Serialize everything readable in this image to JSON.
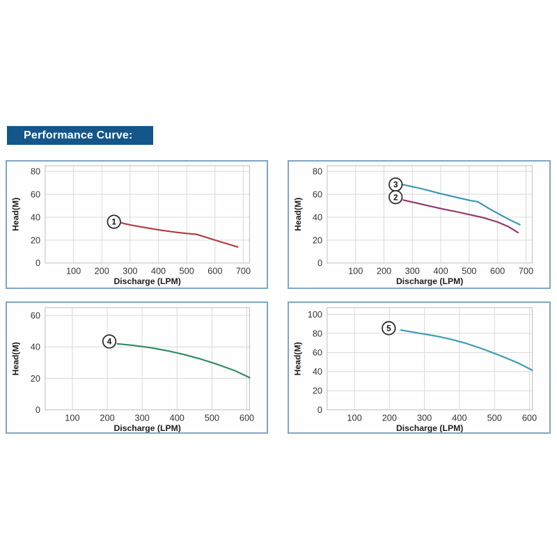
{
  "header": {
    "title": "Performance Curve:"
  },
  "colors": {
    "banner_bg": "#14568a",
    "banner_text": "#ffffff",
    "panel_border": "#7fa5c4",
    "grid": "#d8d8d8",
    "plot_border": "#bdbdbd",
    "curve_1": "#b23b3f",
    "curve_2": "#99336b",
    "curve_3": "#3a95b5",
    "curve_4": "#2f8b5f",
    "curve_5": "#3a9ab8"
  },
  "chart_data": [
    {
      "type": "line",
      "title": "",
      "xlabel": "Discharge (LPM)",
      "ylabel": "Head(M)",
      "xlim": [
        0,
        722
      ],
      "ylim": [
        0,
        85
      ],
      "x_ticks": [
        100,
        200,
        300,
        400,
        500,
        600,
        700
      ],
      "y_ticks": [
        0,
        20,
        40,
        60,
        80
      ],
      "grid": true,
      "series": [
        {
          "name": "1",
          "color": "#b23b3f",
          "label": {
            "x": 243,
            "y": 36
          },
          "points": [
            [
              270,
              35
            ],
            [
              300,
              33.2
            ],
            [
              340,
              31.5
            ],
            [
              400,
              29
            ],
            [
              450,
              27.2
            ],
            [
              500,
              25.8
            ],
            [
              535,
              25
            ],
            [
              600,
              20
            ],
            [
              680,
              14
            ]
          ]
        }
      ]
    },
    {
      "type": "line",
      "title": "",
      "xlabel": "Discharge (LPM)",
      "ylabel": "Head(M)",
      "xlim": [
        0,
        722
      ],
      "ylim": [
        0,
        85
      ],
      "x_ticks": [
        100,
        200,
        300,
        400,
        500,
        600,
        700
      ],
      "y_ticks": [
        0,
        20,
        40,
        60,
        80
      ],
      "grid": true,
      "series": [
        {
          "name": "3",
          "color": "#3a95b5",
          "label": {
            "x": 241,
            "y": 68.5
          },
          "points": [
            [
              265,
              68.5
            ],
            [
              330,
              65
            ],
            [
              400,
              60.5
            ],
            [
              460,
              57
            ],
            [
              505,
              54.5
            ],
            [
              530,
              53.5
            ],
            [
              570,
              47.5
            ],
            [
              610,
              42
            ],
            [
              645,
              37.5
            ],
            [
              678,
              33.5
            ]
          ]
        },
        {
          "name": "2",
          "color": "#99336b",
          "label": {
            "x": 241,
            "y": 57.5
          },
          "points": [
            [
              268,
              55
            ],
            [
              330,
              51.5
            ],
            [
              400,
              47.5
            ],
            [
              460,
              44.5
            ],
            [
              505,
              42
            ],
            [
              550,
              39.5
            ],
            [
              600,
              35.8
            ],
            [
              640,
              31.5
            ],
            [
              672,
              26.5
            ]
          ]
        }
      ]
    },
    {
      "type": "line",
      "title": "",
      "xlabel": "Discharge (LPM)",
      "ylabel": "Head(M)",
      "xlim": [
        22,
        608
      ],
      "ylim": [
        0,
        65
      ],
      "x_ticks": [
        100,
        200,
        300,
        400,
        500,
        600
      ],
      "y_ticks": [
        0,
        20,
        40,
        60
      ],
      "grid": true,
      "series": [
        {
          "name": "4",
          "color": "#2f8b5f",
          "label": {
            "x": 206,
            "y": 43.5
          },
          "points": [
            [
              229,
              42
            ],
            [
              275,
              41
            ],
            [
              325,
              39.5
            ],
            [
              375,
              37.5
            ],
            [
              420,
              35.2
            ],
            [
              465,
              32.5
            ],
            [
              515,
              29
            ],
            [
              565,
              25
            ],
            [
              608,
              20.5
            ]
          ]
        }
      ]
    },
    {
      "type": "line",
      "title": "",
      "xlabel": "Discharge (LPM)",
      "ylabel": "Head(M)",
      "xlim": [
        22,
        608
      ],
      "ylim": [
        0,
        107
      ],
      "x_ticks": [
        100,
        200,
        300,
        400,
        500,
        600
      ],
      "y_ticks": [
        0,
        20,
        40,
        60,
        80,
        100
      ],
      "grid": true,
      "series": [
        {
          "name": "5",
          "color": "#3a9ab8",
          "label": {
            "x": 198,
            "y": 85.5
          },
          "points": [
            [
              233,
              83.5
            ],
            [
              280,
              80.5
            ],
            [
              330,
              77.5
            ],
            [
              375,
              74
            ],
            [
              420,
              69.5
            ],
            [
              465,
              64
            ],
            [
              515,
              57
            ],
            [
              565,
              49.5
            ],
            [
              608,
              41.5
            ]
          ]
        }
      ]
    }
  ]
}
